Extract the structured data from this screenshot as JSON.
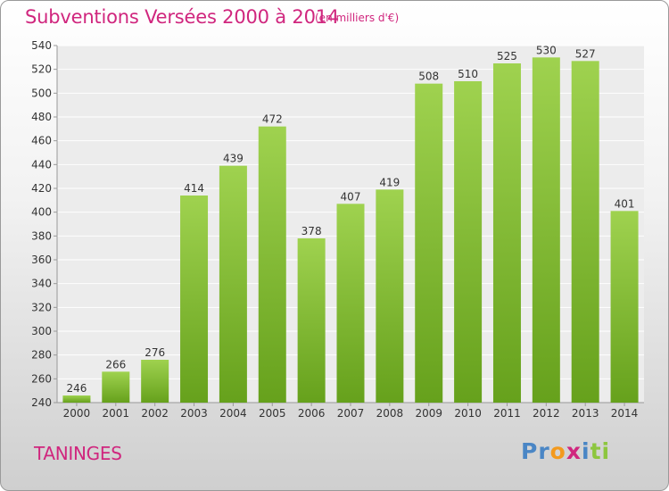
{
  "header": {
    "title": "Subventions Versées 2000 à 2014",
    "unit": "(en milliers d'€)"
  },
  "footer": {
    "commune": "TANINGES",
    "logo_parts": [
      "Pr",
      "o",
      "x",
      "i",
      "ti"
    ]
  },
  "colors": {
    "accent": "#d0267e",
    "bar_top": "#9fd24f",
    "bar_bottom": "#66a11c",
    "logo": [
      "#4a86c5",
      "#f39a1e",
      "#d0267e",
      "#4a86c5",
      "#8dc63f"
    ]
  },
  "chart_data": {
    "type": "bar",
    "categories": [
      "2000",
      "2001",
      "2002",
      "2003",
      "2004",
      "2005",
      "2006",
      "2007",
      "2008",
      "2009",
      "2010",
      "2011",
      "2012",
      "2013",
      "2014"
    ],
    "values": [
      246,
      266,
      276,
      414,
      439,
      472,
      378,
      407,
      419,
      508,
      510,
      525,
      530,
      527,
      401
    ],
    "data_labels": [
      "246",
      "266",
      "276",
      "414",
      "439",
      "472",
      "378",
      "407",
      "419",
      "508",
      "510",
      "525",
      "530",
      "527",
      "401"
    ],
    "ylim": [
      240,
      540
    ],
    "yticks": [
      "240",
      "260",
      "280",
      "300",
      "320",
      "340",
      "360",
      "380",
      "400",
      "420",
      "440",
      "460",
      "480",
      "500",
      "520",
      "540"
    ],
    "grid": true
  }
}
